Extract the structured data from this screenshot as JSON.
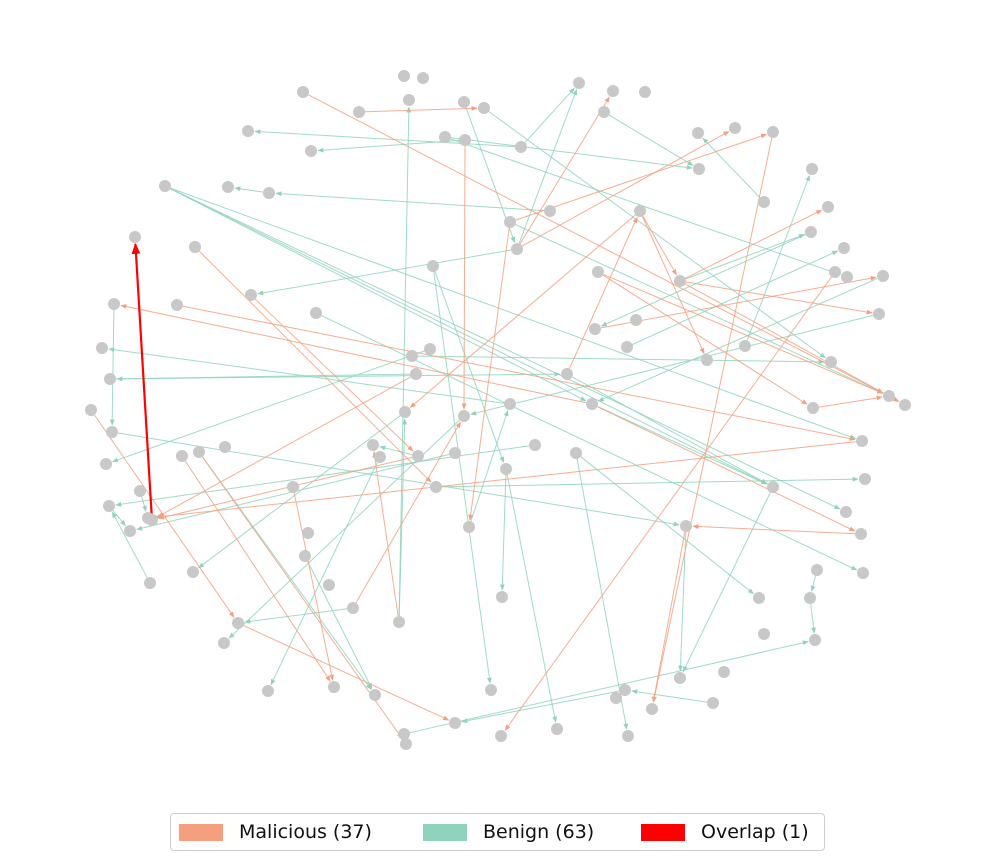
{
  "colors": {
    "malicious": "#f4a07f",
    "benign": "#8fd3bd",
    "overlap": "#ff0000",
    "node": "#c8c8c8"
  },
  "legend": {
    "malicious_label": "Malicious (37)",
    "benign_label": "Benign (63)",
    "overlap_label": "Overlap (1)"
  }
}
